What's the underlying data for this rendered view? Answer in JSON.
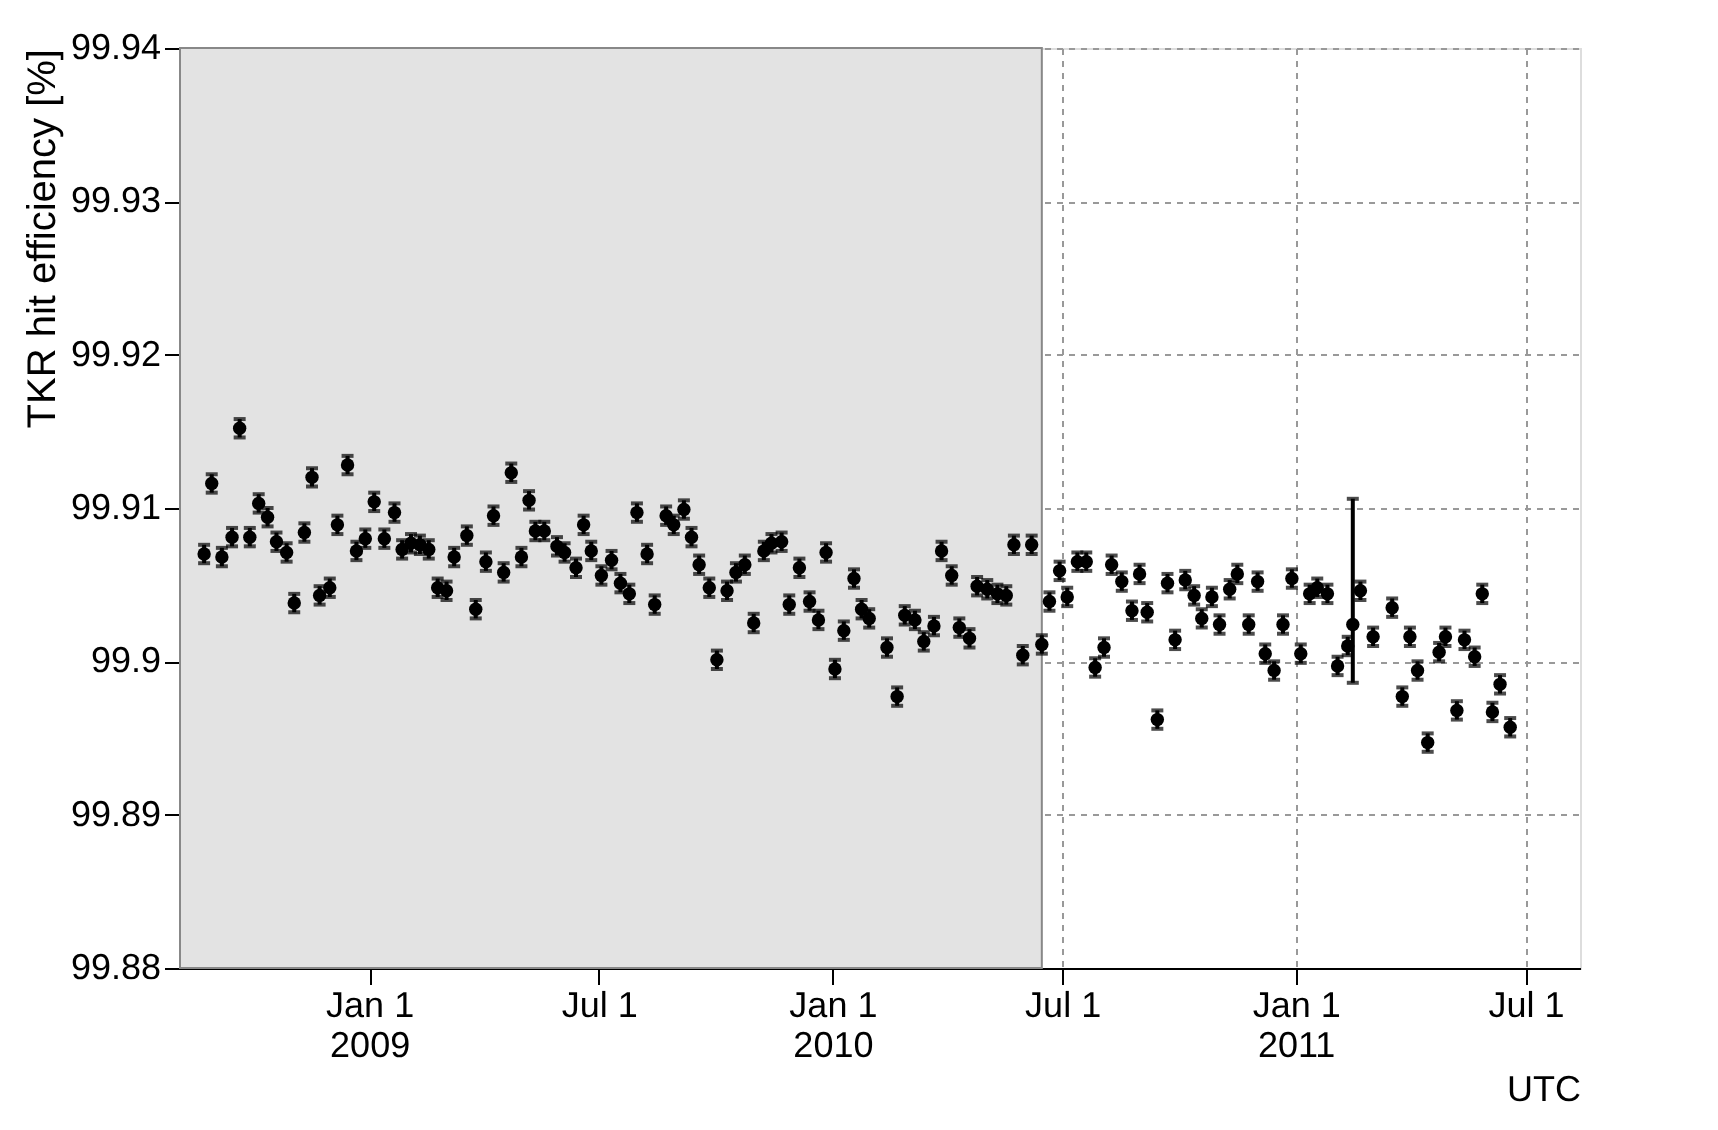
{
  "chart_data": {
    "type": "scatter",
    "xlabel": "UTC",
    "ylabel": "TKR hit efficiency [%]",
    "x": [
      "2008-08-24",
      "2008-08-30",
      "2008-09-07",
      "2008-09-15",
      "2008-09-21",
      "2008-09-29",
      "2008-10-06",
      "2008-10-13",
      "2008-10-20",
      "2008-10-28",
      "2008-11-03",
      "2008-11-11",
      "2008-11-17",
      "2008-11-23",
      "2008-12-01",
      "2008-12-07",
      "2008-12-15",
      "2008-12-22",
      "2008-12-29",
      "2009-01-05",
      "2009-01-13",
      "2009-01-21",
      "2009-01-27",
      "2009-02-03",
      "2009-02-10",
      "2009-02-17",
      "2009-02-24",
      "2009-03-03",
      "2009-03-09",
      "2009-03-19",
      "2009-03-26",
      "2009-04-03",
      "2009-04-09",
      "2009-04-17",
      "2009-04-23",
      "2009-05-01",
      "2009-05-07",
      "2009-05-12",
      "2009-05-19",
      "2009-05-29",
      "2009-06-04",
      "2009-06-13",
      "2009-06-19",
      "2009-06-25",
      "2009-07-03",
      "2009-07-11",
      "2009-07-18",
      "2009-07-25",
      "2009-07-31",
      "2009-08-08",
      "2009-08-14",
      "2009-08-23",
      "2009-08-29",
      "2009-09-06",
      "2009-09-12",
      "2009-09-18",
      "2009-09-26",
      "2009-10-02",
      "2009-10-10",
      "2009-10-17",
      "2009-10-24",
      "2009-10-31",
      "2009-11-08",
      "2009-11-14",
      "2009-11-22",
      "2009-11-28",
      "2009-12-06",
      "2009-12-14",
      "2009-12-21",
      "2009-12-27",
      "2010-01-03",
      "2010-01-10",
      "2010-01-18",
      "2010-01-24",
      "2010-01-30",
      "2010-02-13",
      "2010-02-21",
      "2010-02-27",
      "2010-03-07",
      "2010-03-14",
      "2010-03-22",
      "2010-03-28",
      "2010-04-05",
      "2010-04-11",
      "2010-04-19",
      "2010-04-25",
      "2010-05-03",
      "2010-05-11",
      "2010-05-18",
      "2010-05-24",
      "2010-05-31",
      "2010-06-07",
      "2010-06-15",
      "2010-06-21",
      "2010-06-29",
      "2010-07-05",
      "2010-07-13",
      "2010-07-20",
      "2010-07-27",
      "2010-08-03",
      "2010-08-09",
      "2010-08-17",
      "2010-08-25",
      "2010-08-31",
      "2010-09-06",
      "2010-09-14",
      "2010-09-22",
      "2010-09-28",
      "2010-10-06",
      "2010-10-13",
      "2010-10-19",
      "2010-10-27",
      "2010-11-02",
      "2010-11-10",
      "2010-11-16",
      "2010-11-25",
      "2010-12-02",
      "2010-12-08",
      "2010-12-15",
      "2010-12-22",
      "2010-12-29",
      "2011-01-05",
      "2011-01-12",
      "2011-01-18",
      "2011-01-26",
      "2011-02-03",
      "2011-02-11",
      "2011-02-15",
      "2011-02-21",
      "2011-03-03",
      "2011-03-18",
      "2011-03-26",
      "2011-04-01",
      "2011-04-07",
      "2011-04-15",
      "2011-04-24",
      "2011-04-29",
      "2011-05-08",
      "2011-05-14",
      "2011-05-22",
      "2011-05-28",
      "2011-06-05",
      "2011-06-11",
      "2011-06-19"
    ],
    "values": [
      99.907,
      99.9116,
      99.9068,
      99.9081,
      99.9152,
      99.9081,
      99.9103,
      99.9094,
      99.9078,
      99.9071,
      99.9038,
      99.9084,
      99.912,
      99.9043,
      99.9048,
      99.9089,
      99.9128,
      99.9072,
      99.908,
      99.9104,
      99.908,
      99.9097,
      99.9073,
      99.9077,
      99.9076,
      99.9073,
      99.9048,
      99.9046,
      99.9068,
      99.9082,
      99.9034,
      99.9065,
      99.9095,
      99.9058,
      99.9123,
      99.9068,
      99.9105,
      99.9085,
      99.9085,
      99.9075,
      99.9071,
      99.9061,
      99.9089,
      99.9072,
      99.9056,
      99.9066,
      99.9051,
      99.9044,
      99.9097,
      99.907,
      99.9037,
      99.9095,
      99.9089,
      99.9099,
      99.9081,
      99.9063,
      99.9048,
      99.9001,
      99.9046,
      99.9058,
      99.9063,
      99.9025,
      99.9072,
      99.9077,
      99.9078,
      99.9037,
      99.9061,
      99.9039,
      99.9027,
      99.9071,
      99.8995,
      99.902,
      99.9054,
      99.9034,
      99.9028,
      99.9009,
      99.8977,
      99.903,
      99.9027,
      99.9013,
      99.9023,
      99.9072,
      99.9056,
      99.9022,
      99.9015,
      99.9049,
      99.9047,
      99.9044,
      99.9043,
      99.9076,
      99.9004,
      99.9076,
      99.9011,
      99.9039,
      99.9059,
      99.9042,
      99.9065,
      99.9065,
      99.8996,
      99.9009,
      99.9063,
      99.9052,
      99.9033,
      99.9057,
      99.9032,
      99.8962,
      99.9051,
      99.9014,
      99.9053,
      99.9043,
      99.9028,
      99.9042,
      99.9024,
      99.9047,
      99.9057,
      99.9024,
      99.9052,
      99.9005,
      99.8994,
      99.9024,
      99.9054,
      99.9005,
      99.9044,
      99.9048,
      99.9044,
      99.8997,
      99.901,
      99.9024,
      99.9046,
      99.9016,
      99.9035,
      99.8977,
      99.9016,
      99.8994,
      99.8947,
      99.9006,
      99.9016,
      99.8968,
      99.9014,
      99.9003,
      99.9044,
      99.8967,
      99.8985,
      99.8957
    ],
    "errors": [
      0.0006,
      0.0006,
      0.0006,
      0.0006,
      0.0006,
      0.0006,
      0.0006,
      0.0006,
      0.0006,
      0.0006,
      0.0006,
      0.0006,
      0.0006,
      0.0006,
      0.0006,
      0.0006,
      0.0006,
      0.0006,
      0.0006,
      0.0006,
      0.0006,
      0.0006,
      0.0006,
      0.0006,
      0.0006,
      0.0006,
      0.0006,
      0.0006,
      0.0006,
      0.0006,
      0.0006,
      0.0006,
      0.0006,
      0.0006,
      0.0006,
      0.0006,
      0.0006,
      0.0006,
      0.0006,
      0.0006,
      0.0006,
      0.0006,
      0.0006,
      0.0006,
      0.0006,
      0.0006,
      0.0006,
      0.0006,
      0.0006,
      0.0006,
      0.0006,
      0.0006,
      0.0006,
      0.0006,
      0.0006,
      0.0006,
      0.0006,
      0.0006,
      0.0006,
      0.0006,
      0.0006,
      0.0006,
      0.0006,
      0.0006,
      0.0006,
      0.0006,
      0.0006,
      0.0006,
      0.0006,
      0.0006,
      0.0006,
      0.0006,
      0.0006,
      0.0006,
      0.0006,
      0.0006,
      0.0006,
      0.0006,
      0.0006,
      0.0006,
      0.0006,
      0.0006,
      0.0006,
      0.0006,
      0.0006,
      0.0006,
      0.0006,
      0.0006,
      0.0006,
      0.0006,
      0.0006,
      0.0006,
      0.0006,
      0.0006,
      0.0006,
      0.0006,
      0.0006,
      0.0006,
      0.0006,
      0.0006,
      0.0006,
      0.0006,
      0.0006,
      0.0006,
      0.0006,
      0.0006,
      0.0006,
      0.0006,
      0.0006,
      0.0006,
      0.0006,
      0.0006,
      0.0006,
      0.0006,
      0.0006,
      0.0006,
      0.0006,
      0.0006,
      0.0006,
      0.0006,
      0.0006,
      0.0006,
      0.0006,
      0.0006,
      0.0006,
      0.0006,
      0.0006,
      [
        99.8986,
        99.9106
      ],
      0.0006,
      0.0006,
      0.0006,
      0.0006,
      0.0006,
      0.0006,
      0.0006,
      0.0006,
      0.0006,
      0.0006,
      0.0006,
      0.0006,
      0.0006,
      0.0006,
      0.0006,
      0.0006
    ],
    "color": "#000000",
    "marker": "circle",
    "xlim": [
      "2008-08-05",
      "2011-08-13"
    ],
    "xticks": [
      {
        "value": "2009-01-01",
        "label": "Jan 1\n2009"
      },
      {
        "value": "2009-07-01",
        "label": "Jul 1"
      },
      {
        "value": "2010-01-01",
        "label": "Jan 1\n2010"
      },
      {
        "value": "2010-07-01",
        "label": "Jul 1"
      },
      {
        "value": "2011-01-01",
        "label": "Jan 1\n2011"
      },
      {
        "value": "2011-07-01",
        "label": "Jul 1"
      }
    ],
    "ylim": [
      99.88,
      99.94
    ],
    "yticks": [
      99.88,
      99.89,
      99.9,
      99.91,
      99.92,
      99.93,
      99.94
    ],
    "bands": [
      {
        "axis": "x",
        "from": "2008-08-05",
        "to": "2010-06-15",
        "color": "#e3e3e3"
      }
    ],
    "grid": true
  }
}
